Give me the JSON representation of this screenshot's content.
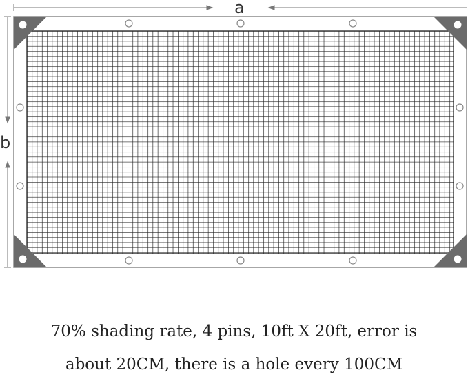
{
  "dimensions": {
    "width_label": "a",
    "height_label": "b"
  },
  "colors": {
    "frame": "#8a8a8a",
    "corner": "#6b6b6b",
    "mesh": "#222222"
  },
  "caption": {
    "line1": "70% shading rate, 4 pins, 10ft X 20ft, error is",
    "line2": "about 20CM, there is a hole every 100CM"
  }
}
